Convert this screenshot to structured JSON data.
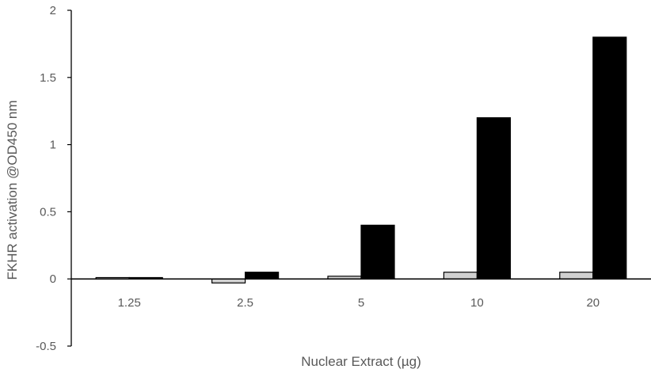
{
  "chart_data": {
    "type": "bar",
    "title": "",
    "xlabel": "Nuclear Extract (µg)",
    "ylabel": "FKHR activation @OD450 nm",
    "categories": [
      "1.25",
      "2.5",
      "5",
      "10",
      "20"
    ],
    "ylim": [
      -0.5,
      2
    ],
    "yticks": [
      -0.5,
      0,
      0.5,
      1,
      1.5,
      2
    ],
    "ytick_labels": [
      "-0.5",
      "0",
      "0.5",
      "1",
      "1.5",
      "2"
    ],
    "grid": false,
    "legend": "none",
    "series": [
      {
        "values": [
          0.01,
          -0.03,
          0.02,
          0.05,
          0.05
        ],
        "color": "#d0d0d0",
        "edge": "#000000"
      },
      {
        "values": [
          0.01,
          0.05,
          0.4,
          1.2,
          1.8
        ],
        "color": "#000000",
        "edge": "#000000"
      }
    ]
  }
}
